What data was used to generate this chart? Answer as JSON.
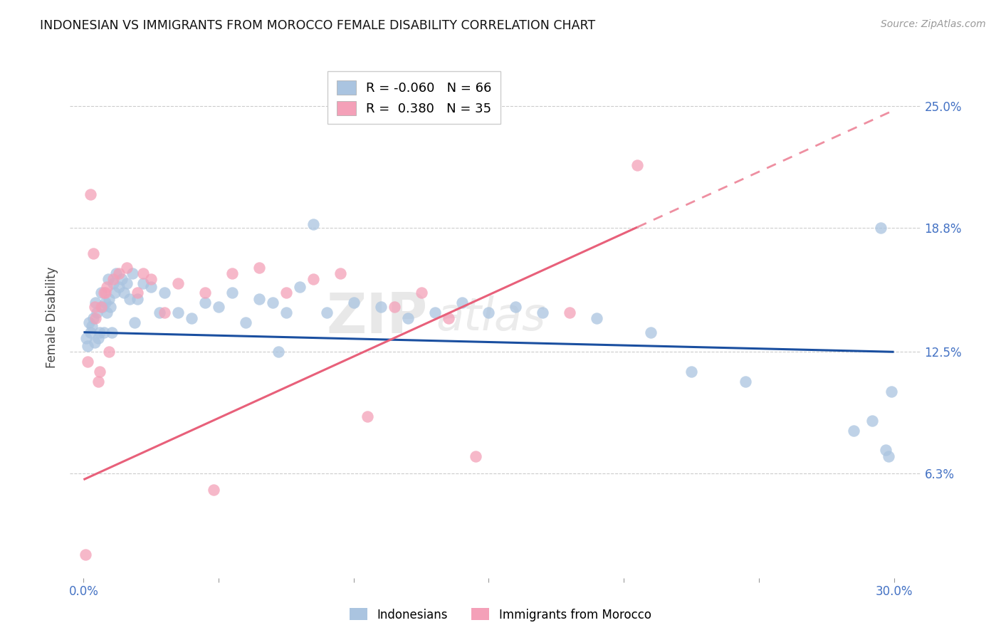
{
  "title": "INDONESIAN VS IMMIGRANTS FROM MOROCCO FEMALE DISABILITY CORRELATION CHART",
  "source": "Source: ZipAtlas.com",
  "ylabel": "Female Disability",
  "xlabel_vals": [
    0.0,
    30.0
  ],
  "xlabel_labels": [
    "0.0%",
    "30.0%"
  ],
  "ylabel_vals": [
    6.3,
    12.5,
    18.8,
    25.0
  ],
  "ylabel_labels": [
    "6.3%",
    "12.5%",
    "18.8%",
    "25.0%"
  ],
  "xlim": [
    -0.5,
    31.0
  ],
  "ylim": [
    1.0,
    27.5
  ],
  "R_blue": -0.06,
  "N_blue": 66,
  "R_pink": 0.38,
  "N_pink": 35,
  "legend_label_blue": "Indonesians",
  "legend_label_pink": "Immigrants from Morocco",
  "blue_color": "#aac4e0",
  "pink_color": "#f4a0b8",
  "blue_line_color": "#1a4fa0",
  "pink_line_color": "#e8607a",
  "watermark_line1": "ZIP",
  "watermark_line2": "atlas",
  "blue_line_start_y": 13.5,
  "blue_line_end_y": 12.5,
  "pink_line_start_y": 6.0,
  "pink_line_end_y": 24.8,
  "blue_x": [
    0.1,
    0.15,
    0.2,
    0.25,
    0.3,
    0.35,
    0.4,
    0.45,
    0.5,
    0.55,
    0.6,
    0.65,
    0.7,
    0.75,
    0.8,
    0.85,
    0.9,
    0.95,
    1.0,
    1.05,
    1.1,
    1.15,
    1.2,
    1.3,
    1.4,
    1.5,
    1.6,
    1.7,
    1.8,
    1.9,
    2.0,
    2.2,
    2.5,
    2.8,
    3.0,
    3.5,
    4.0,
    4.5,
    5.0,
    5.5,
    6.0,
    6.5,
    7.0,
    7.5,
    8.0,
    9.0,
    10.0,
    11.0,
    12.0,
    13.0,
    14.0,
    15.0,
    16.0,
    17.0,
    19.0,
    21.0,
    22.5,
    24.5,
    28.5,
    29.2,
    29.5,
    29.7,
    29.8,
    29.9,
    7.2,
    8.5
  ],
  "blue_y": [
    13.2,
    12.8,
    14.0,
    13.5,
    13.8,
    14.2,
    13.0,
    15.0,
    14.5,
    13.2,
    13.5,
    15.5,
    14.8,
    13.5,
    15.0,
    14.5,
    16.2,
    15.2,
    14.8,
    13.5,
    16.0,
    15.5,
    16.5,
    15.8,
    16.2,
    15.5,
    16.0,
    15.2,
    16.5,
    14.0,
    15.2,
    16.0,
    15.8,
    14.5,
    15.5,
    14.5,
    14.2,
    15.0,
    14.8,
    15.5,
    14.0,
    15.2,
    15.0,
    14.5,
    15.8,
    14.5,
    15.0,
    14.8,
    14.2,
    14.5,
    15.0,
    14.5,
    14.8,
    14.5,
    14.2,
    13.5,
    11.5,
    11.0,
    8.5,
    9.0,
    18.8,
    7.5,
    7.2,
    10.5,
    12.5,
    19.0
  ],
  "pink_x": [
    0.08,
    0.15,
    0.25,
    0.35,
    0.45,
    0.55,
    0.65,
    0.75,
    0.85,
    0.95,
    1.1,
    1.3,
    1.6,
    2.0,
    2.5,
    3.5,
    4.5,
    5.5,
    6.5,
    7.5,
    8.5,
    9.5,
    10.5,
    11.5,
    12.5,
    13.5,
    14.5,
    4.8,
    18.0,
    20.5,
    0.4,
    0.6,
    0.8,
    2.2,
    3.0
  ],
  "pink_y": [
    2.2,
    12.0,
    20.5,
    17.5,
    14.2,
    11.0,
    14.8,
    15.5,
    15.8,
    12.5,
    16.2,
    16.5,
    16.8,
    15.5,
    16.2,
    16.0,
    15.5,
    16.5,
    16.8,
    15.5,
    16.2,
    16.5,
    9.2,
    14.8,
    15.5,
    14.2,
    7.2,
    5.5,
    14.5,
    22.0,
    14.8,
    11.5,
    15.5,
    16.5,
    14.5
  ]
}
